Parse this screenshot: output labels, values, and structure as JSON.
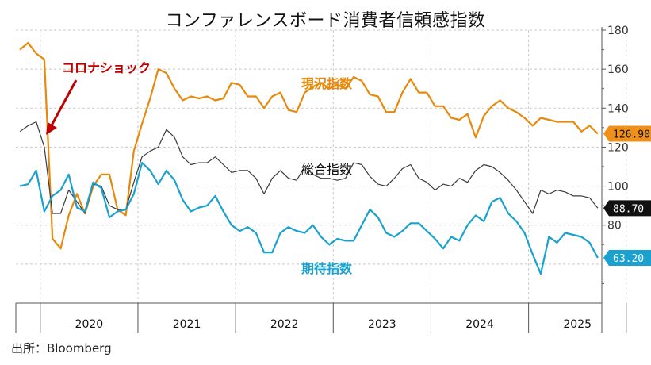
{
  "title": "コンファレンスボード消費者信頼感指数",
  "source": "出所：Bloomberg",
  "chart_data": {
    "type": "line",
    "title": "コンファレンスボード消費者信頼感指数",
    "x_start": "2019-10",
    "x_end": "2025-10",
    "ylim": [
      40,
      180
    ],
    "yticks": [
      80,
      100,
      120,
      140,
      160,
      180
    ],
    "year_labels": [
      "2020",
      "2021",
      "2022",
      "2023",
      "2024",
      "2025"
    ],
    "year_ticks_month_index": [
      3,
      15,
      27,
      39,
      51,
      63,
      75
    ],
    "series": [
      {
        "name": "現況指数",
        "color": "#E8890C",
        "label_color": "#E8890C",
        "stroke_width": 2.2,
        "last_value_label": "126.90",
        "values": [
          170,
          173.5,
          168,
          165,
          73,
          68,
          85,
          96,
          86,
          100,
          106,
          106,
          88,
          85,
          118,
          132,
          145,
          160,
          158,
          150,
          144,
          146,
          145,
          146,
          144,
          145,
          153,
          152,
          146,
          146,
          140,
          146,
          148,
          139,
          138,
          148,
          151,
          153,
          150,
          152,
          150,
          156,
          154,
          147,
          146,
          138,
          138,
          148,
          155,
          148,
          148,
          141,
          141,
          135,
          134,
          137,
          125,
          136,
          141,
          144,
          140,
          138,
          135,
          131,
          135,
          134,
          133,
          133,
          133,
          128,
          131,
          126.9
        ]
      },
      {
        "name": "総合指数",
        "color": "#3a3a3a",
        "label_color": "#111111",
        "stroke_width": 1.2,
        "last_value_label": "88.70",
        "values": [
          128,
          131,
          133,
          120,
          86,
          86,
          98,
          92,
          86,
          101,
          100,
          90,
          88,
          88,
          102,
          115,
          118,
          120,
          129,
          125,
          115,
          111,
          112,
          112,
          115,
          111,
          107,
          108,
          108,
          104,
          96,
          104,
          108,
          104,
          103,
          110,
          106,
          104,
          104,
          103,
          104,
          112,
          111,
          105,
          101,
          100,
          104,
          109,
          111,
          104,
          102,
          98,
          101,
          100,
          104,
          102,
          108,
          111,
          110,
          107,
          103,
          98,
          92,
          86,
          98,
          96,
          98,
          97,
          95,
          95,
          94,
          88.7
        ]
      },
      {
        "name": "期待指数",
        "color": "#1BA1CF",
        "label_color": "#1BA1CF",
        "stroke_width": 2.2,
        "last_value_label": "63.20",
        "values": [
          100,
          101,
          108,
          87,
          95,
          98,
          106,
          89,
          87,
          102,
          99,
          84,
          87,
          88,
          96,
          112,
          108,
          101,
          108,
          103,
          93,
          87,
          89,
          90,
          95,
          87,
          80,
          77,
          79,
          76,
          66,
          66,
          76,
          79,
          77,
          76,
          80,
          74,
          70,
          73,
          72,
          72,
          80,
          88,
          84,
          76,
          74,
          77,
          81,
          81,
          77,
          73,
          68,
          74,
          72,
          80,
          85,
          82,
          92,
          94,
          86,
          82,
          76,
          65,
          55,
          74,
          71,
          76,
          75,
          74,
          71,
          63.2
        ]
      }
    ],
    "annotations": [
      {
        "text": "コロナショック",
        "color": "#C00000",
        "arrow": true
      }
    ]
  }
}
